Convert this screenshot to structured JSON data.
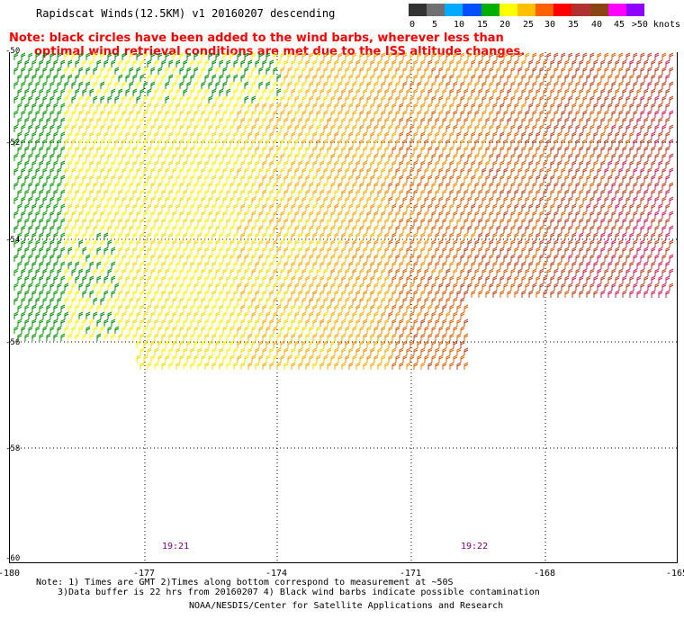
{
  "title": "Rapidscat Winds(12.5KM) v1 20160207 descending",
  "note": {
    "line1": "Note: black circles have been added to the wind barbs, wherever less than",
    "line2": "optimal wind retrieval conditions are met due to the ISS altitude changes."
  },
  "legend": {
    "labels": [
      "0",
      "5",
      "10",
      "15",
      "20",
      "25",
      "30",
      "35",
      "40",
      "45",
      ">50 knots"
    ],
    "colors": [
      "#333333",
      "#707070",
      "#00aaff",
      "#0050ff",
      "#00b000",
      "#ffff00",
      "#ffc000",
      "#ff6000",
      "#ff0000",
      "#b03030",
      "#8b4513",
      "#ff00ff",
      "#9000ff"
    ]
  },
  "axes": {
    "y_labels": [
      "-50",
      "-52",
      "-54",
      "-56",
      "-58",
      "-60"
    ],
    "x_labels": [
      "-180",
      "-177",
      "-174",
      "-171",
      "-168",
      "-165"
    ]
  },
  "times": [
    "19:21",
    "19:22"
  ],
  "footnote": {
    "line1": "Note: 1) Times are GMT 2)Times along bottom correspond to measurement at ~50S",
    "line2": "3)Data buffer is 22 hrs from 20160207 4) Black wind barbs indicate possible contamination"
  },
  "credit": "NOAA/NESDIS/Center for Satellite Applications and Research"
}
